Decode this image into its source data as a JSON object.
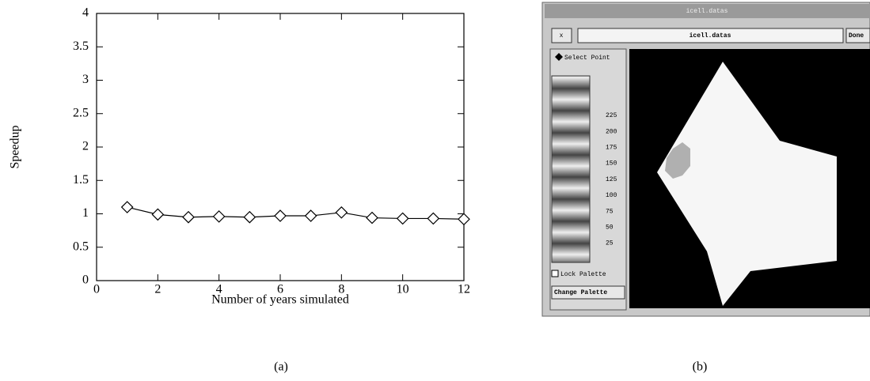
{
  "chart_data": {
    "type": "line",
    "xlabel": "Number of years simulated",
    "ylabel": "Speedup",
    "x": [
      1,
      2,
      3,
      4,
      5,
      6,
      7,
      8,
      9,
      10,
      11,
      12
    ],
    "values": [
      1.1,
      0.99,
      0.95,
      0.96,
      0.95,
      0.97,
      0.97,
      1.02,
      0.94,
      0.93,
      0.93,
      0.92
    ],
    "color": "#000000",
    "marker": "diamond",
    "xlim": [
      0,
      12
    ],
    "ylim": [
      0,
      4
    ],
    "xticks": [
      0,
      2,
      4,
      6,
      8,
      10,
      12
    ],
    "yticks": [
      0,
      0.5,
      1,
      1.5,
      2,
      2.5,
      3,
      3.5,
      4
    ]
  },
  "captions": [
    "(a)",
    "(b)"
  ],
  "screenshot": {
    "window_title": "icell.datas",
    "close_button": "x",
    "file_field": "icell.datas",
    "done_button": "Done",
    "select_point": "Select Point",
    "palette_labels": [
      225,
      200,
      175,
      150,
      125,
      100,
      75,
      50,
      25
    ],
    "lock_palette": "Lock Palette",
    "change_palette": "Change Palette"
  }
}
